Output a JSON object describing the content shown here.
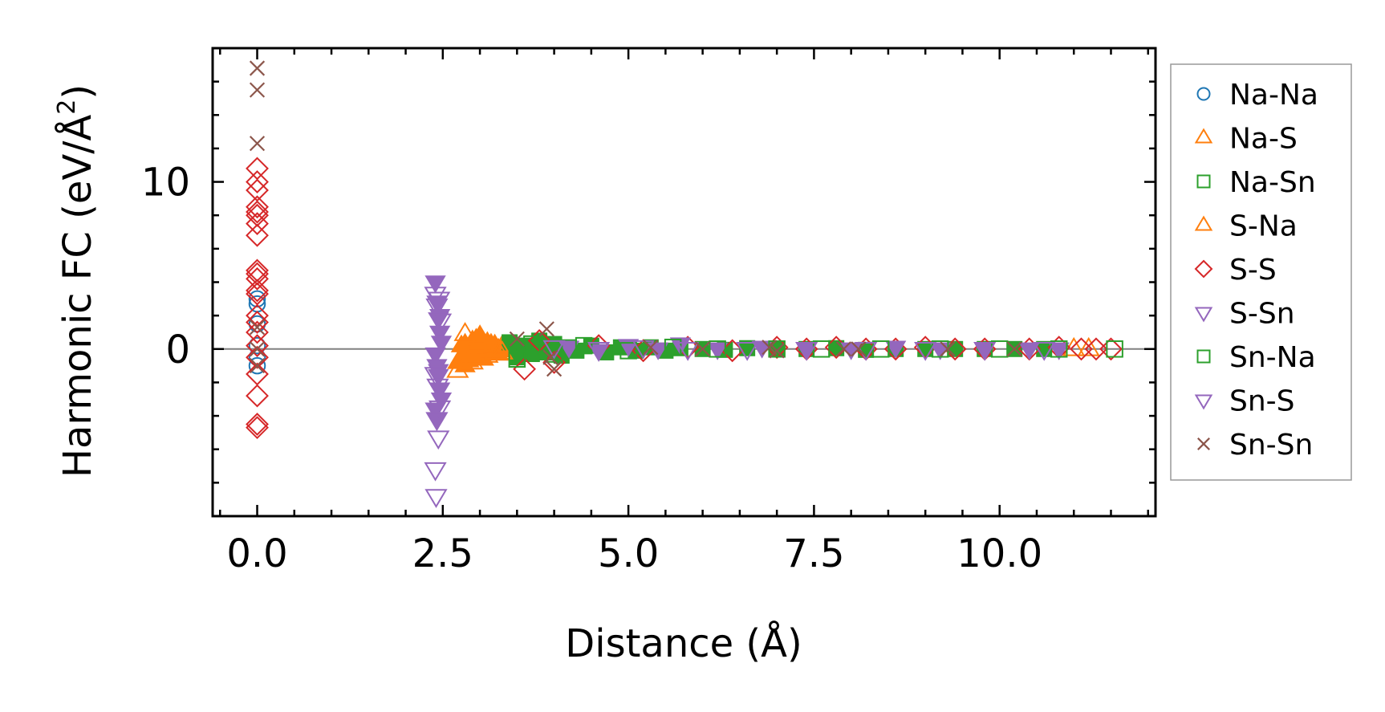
{
  "chart_data": {
    "type": "scatter",
    "xlabel": "Distance (Å)",
    "ylabel_main": "Harmonic FC (eV/Å",
    "ylabel_sup": "2",
    "ylabel_end": ")",
    "xlim": [
      -0.6,
      12.1
    ],
    "ylim": [
      -10.0,
      18.0
    ],
    "x_ticks": [
      0.0,
      2.5,
      5.0,
      7.5,
      10.0
    ],
    "x_tick_labels": [
      "0.0",
      "2.5",
      "5.0",
      "7.5",
      "10.0"
    ],
    "x_minor_step": 0.5,
    "y_ticks": [
      0,
      10
    ],
    "y_tick_labels": [
      "0",
      "10"
    ],
    "y_minor_step": 2,
    "zero_line": true,
    "grid": false,
    "legend_position": "outside right",
    "series": [
      {
        "name": "Na-Na",
        "marker": "circle",
        "color": "#1f77b4",
        "filled": false,
        "x": [
          0.0,
          0.0,
          0.0,
          0.0,
          0.0,
          0.0
        ],
        "y": [
          3.0,
          2.7,
          1.5,
          0.2,
          -0.5,
          -1.0
        ]
      },
      {
        "name": "Na-S",
        "marker": "triangle-up",
        "color": "#ff7f0e",
        "filled": true,
        "x": [
          2.7,
          2.75,
          2.8,
          2.85,
          2.9,
          2.95,
          3.0,
          3.05,
          3.1,
          3.15,
          3.2,
          3.25,
          3.3,
          3.35,
          3.4,
          2.75,
          2.85,
          2.95,
          3.05,
          3.15,
          3.25,
          2.8,
          2.9,
          3.0,
          3.1,
          3.2,
          3.3
        ],
        "y": [
          -0.8,
          -0.5,
          0.3,
          -0.3,
          0.5,
          -0.2,
          0.2,
          -0.6,
          0.4,
          -0.1,
          0.1,
          -0.3,
          0.2,
          -0.1,
          0.1,
          0.2,
          -0.7,
          0.6,
          -0.2,
          0.3,
          0.0,
          -1.0,
          -0.4,
          0.8,
          0.1,
          -0.2,
          0.1
        ]
      },
      {
        "name": "Na-Sn",
        "marker": "square",
        "color": "#2ca02c",
        "filled": true,
        "x": [
          3.4,
          3.5,
          3.6,
          3.7,
          3.8,
          3.9,
          4.0,
          4.1,
          4.2,
          4.3,
          4.5,
          4.7,
          4.9,
          5.1,
          5.3,
          5.5,
          5.7,
          6.0,
          6.3,
          6.6,
          7.0,
          7.4,
          7.8,
          8.2,
          8.6,
          9.0,
          9.4,
          9.8,
          10.2,
          10.6
        ],
        "y": [
          0.4,
          -0.5,
          0.2,
          -0.3,
          0.5,
          -0.2,
          0.3,
          -0.4,
          0.1,
          -0.1,
          0.2,
          -0.2,
          0.1,
          -0.1,
          0.1,
          -0.1,
          0.05,
          0.0,
          -0.05,
          0.05,
          0.0,
          0.0,
          0.05,
          -0.05,
          0.0,
          0.0,
          0.0,
          0.0,
          0.0,
          0.0
        ]
      },
      {
        "name": "S-Na",
        "marker": "triangle-up",
        "color": "#ff7f0e",
        "filled": false,
        "x": [
          2.7,
          2.8,
          2.9,
          3.0,
          3.1,
          3.2,
          3.3,
          11.0,
          11.2
        ],
        "y": [
          -1.3,
          0.9,
          -0.8,
          0.4,
          -0.4,
          0.2,
          -0.2,
          0.0,
          0.0
        ]
      },
      {
        "name": "S-S",
        "marker": "diamond",
        "color": "#d62728",
        "filled": false,
        "x": [
          0.0,
          0.0,
          0.0,
          0.0,
          0.0,
          0.0,
          0.0,
          0.0,
          0.0,
          0.0,
          0.0,
          0.0,
          0.0,
          0.0,
          0.0,
          0.0,
          0.0,
          0.0,
          0.0,
          0.0,
          0.0,
          0.0,
          3.6,
          3.8,
          4.0,
          4.6,
          5.2,
          5.8,
          6.4,
          7.0,
          7.4,
          7.8,
          8.2,
          8.6,
          9.0,
          9.4,
          9.8,
          10.4,
          10.8,
          11.1,
          11.3,
          11.5
        ],
        "y": [
          10.8,
          10.0,
          9.5,
          8.5,
          8.2,
          8.0,
          7.5,
          6.8,
          4.7,
          4.5,
          4.2,
          3.5,
          3.3,
          2.0,
          1.6,
          1.0,
          0.2,
          -0.5,
          -1.5,
          -2.8,
          -4.5,
          -4.7,
          -1.2,
          0.5,
          -0.8,
          0.2,
          -0.1,
          0.1,
          -0.1,
          0.1,
          0.0,
          0.1,
          0.0,
          0.0,
          0.1,
          0.0,
          0.0,
          0.0,
          0.1,
          0.0,
          0.0,
          0.0
        ]
      },
      {
        "name": "S-Sn",
        "marker": "triangle-down",
        "color": "#9467bd",
        "filled": true,
        "x": [
          2.4,
          2.42,
          2.44,
          2.46,
          2.48,
          2.4,
          2.42,
          2.44,
          2.46,
          2.48,
          2.4,
          2.42,
          2.44,
          2.46,
          4.2,
          4.6,
          5.0,
          5.4,
          5.7,
          6.2,
          6.8,
          7.4,
          8.0,
          8.6,
          9.2,
          9.8,
          10.4,
          10.8
        ],
        "y": [
          4.0,
          2.8,
          1.8,
          1.0,
          0.4,
          -0.3,
          -1.0,
          -1.6,
          -2.4,
          -3.0,
          -3.6,
          -4.2,
          -1.3,
          2.0,
          0.1,
          -0.1,
          0.2,
          0.0,
          0.3,
          0.0,
          0.1,
          0.0,
          0.0,
          0.1,
          0.0,
          0.0,
          0.0,
          0.0
        ]
      },
      {
        "name": "Sn-Na",
        "marker": "square",
        "color": "#2ca02c",
        "filled": false,
        "x": [
          3.5,
          3.7,
          4.0,
          4.4,
          5.0,
          5.6,
          6.2,
          7.0,
          7.6,
          8.4,
          9.2,
          10.0,
          10.8,
          11.55
        ],
        "y": [
          -0.6,
          0.3,
          -0.3,
          0.2,
          -0.1,
          0.1,
          0.0,
          0.0,
          0.0,
          0.0,
          0.0,
          0.0,
          0.0,
          0.0
        ]
      },
      {
        "name": "Sn-S",
        "marker": "triangle-down",
        "color": "#9467bd",
        "filled": false,
        "x": [
          2.4,
          2.42,
          2.45,
          2.47,
          2.4,
          2.43,
          2.46,
          2.42,
          2.44,
          2.4,
          2.41,
          4.0,
          4.6,
          5.2,
          5.8,
          6.6,
          7.4,
          8.2,
          9.0,
          9.8,
          10.6
        ],
        "y": [
          3.3,
          2.6,
          3.0,
          1.7,
          -1.5,
          -2.2,
          -3.5,
          -4.2,
          -5.3,
          -7.2,
          -8.8,
          0.1,
          0.0,
          0.1,
          0.0,
          0.0,
          0.0,
          0.0,
          0.0,
          0.0,
          0.0
        ]
      },
      {
        "name": "Sn-Sn",
        "marker": "x",
        "color": "#8c564b",
        "filled": false,
        "x": [
          0.0,
          0.0,
          0.0,
          0.0,
          0.0,
          0.0,
          3.5,
          3.9,
          3.95,
          4.0,
          5.3,
          6.0,
          6.9,
          7.0,
          7.9,
          8.1,
          9.3,
          10.2
        ],
        "y": [
          16.8,
          15.5,
          12.3,
          1.3,
          0.0,
          -1.0,
          0.6,
          1.2,
          -0.5,
          -1.2,
          0.1,
          0.0,
          0.1,
          -0.1,
          0.0,
          0.0,
          0.0,
          0.0
        ]
      }
    ]
  }
}
